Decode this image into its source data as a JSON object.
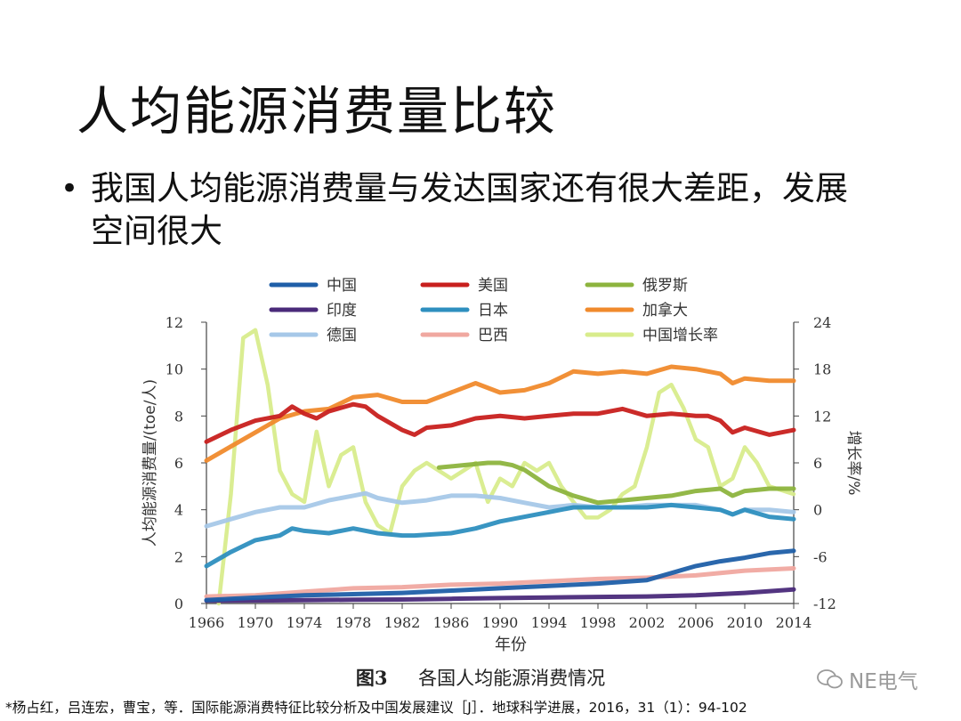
{
  "slide": {
    "title": "人均能源消费量比较",
    "bullet": "我国人均能源消费量与发达国家还有很大差距，发展空间很大"
  },
  "figure": {
    "label": "图3",
    "caption": "各国人均能源消费情况"
  },
  "reference": "*杨占红，吕连宏，曹宝，等．国际能源消费特征比较分析及中国发展建议［J］．地球科学进展，2016，31（1）：94-102",
  "watermark": "NE电气",
  "chart_data": {
    "type": "line",
    "xlabel": "年份",
    "ylabel": "人均能源消费量/(toe/人)",
    "y2label": "增长率/%",
    "ylim": [
      0,
      12
    ],
    "y2lim": [
      -12,
      24
    ],
    "xlim": [
      1966,
      2014
    ],
    "xticks": [
      1966,
      1970,
      1974,
      1978,
      1982,
      1986,
      1990,
      1994,
      1998,
      2002,
      2006,
      2010,
      2014
    ],
    "yticks": [
      0,
      2,
      4,
      6,
      8,
      10,
      12
    ],
    "y2ticks": [
      -12,
      -6,
      0,
      6,
      12,
      18,
      24
    ],
    "grid": false,
    "legend_position": "top",
    "series": [
      {
        "name": "中国",
        "color": "#1f5fa8",
        "axis": "left",
        "x": [
          1966,
          1970,
          1974,
          1978,
          1982,
          1986,
          1990,
          1994,
          1998,
          2002,
          2004,
          2006,
          2008,
          2010,
          2012,
          2014
        ],
        "y": [
          0.15,
          0.25,
          0.35,
          0.4,
          0.45,
          0.55,
          0.65,
          0.75,
          0.85,
          1.0,
          1.3,
          1.6,
          1.8,
          1.95,
          2.15,
          2.25
        ]
      },
      {
        "name": "美国",
        "color": "#c8201e",
        "axis": "left",
        "x": [
          1966,
          1968,
          1970,
          1972,
          1973,
          1974,
          1975,
          1976,
          1978,
          1979,
          1980,
          1982,
          1983,
          1984,
          1986,
          1988,
          1990,
          1992,
          1994,
          1996,
          1998,
          2000,
          2002,
          2004,
          2006,
          2007,
          2008,
          2009,
          2010,
          2012,
          2014
        ],
        "y": [
          6.9,
          7.4,
          7.8,
          8.0,
          8.4,
          8.1,
          7.9,
          8.2,
          8.5,
          8.4,
          8.0,
          7.4,
          7.2,
          7.5,
          7.6,
          7.9,
          8.0,
          7.9,
          8.0,
          8.1,
          8.1,
          8.3,
          8.0,
          8.1,
          8.0,
          8.0,
          7.8,
          7.3,
          7.5,
          7.2,
          7.4
        ]
      },
      {
        "name": "俄罗斯",
        "color": "#8db43e",
        "axis": "left",
        "x": [
          1985,
          1987,
          1989,
          1990,
          1991,
          1992,
          1994,
          1996,
          1998,
          2000,
          2002,
          2004,
          2006,
          2008,
          2009,
          2010,
          2012,
          2014
        ],
        "y": [
          5.8,
          5.9,
          6.0,
          6.0,
          5.9,
          5.7,
          5.0,
          4.6,
          4.3,
          4.4,
          4.5,
          4.6,
          4.8,
          4.9,
          4.6,
          4.8,
          4.9,
          4.9
        ]
      },
      {
        "name": "印度",
        "color": "#4a2a7a",
        "axis": "left",
        "x": [
          1966,
          1970,
          1974,
          1978,
          1982,
          1986,
          1990,
          1994,
          1998,
          2002,
          2006,
          2010,
          2014
        ],
        "y": [
          0.12,
          0.13,
          0.14,
          0.16,
          0.17,
          0.2,
          0.23,
          0.26,
          0.28,
          0.3,
          0.35,
          0.45,
          0.6
        ]
      },
      {
        "name": "日本",
        "color": "#2e8fbf",
        "axis": "left",
        "x": [
          1966,
          1968,
          1970,
          1972,
          1973,
          1974,
          1976,
          1978,
          1980,
          1982,
          1983,
          1986,
          1988,
          1990,
          1992,
          1994,
          1996,
          1998,
          2000,
          2002,
          2004,
          2006,
          2008,
          2009,
          2010,
          2012,
          2014
        ],
        "y": [
          1.6,
          2.2,
          2.7,
          2.9,
          3.2,
          3.1,
          3.0,
          3.2,
          3.0,
          2.9,
          2.9,
          3.0,
          3.2,
          3.5,
          3.7,
          3.9,
          4.1,
          4.1,
          4.1,
          4.1,
          4.2,
          4.1,
          4.0,
          3.8,
          4.0,
          3.7,
          3.6
        ]
      },
      {
        "name": "加拿大",
        "color": "#f08a2c",
        "axis": "left",
        "x": [
          1966,
          1968,
          1970,
          1972,
          1974,
          1976,
          1978,
          1980,
          1982,
          1984,
          1986,
          1988,
          1990,
          1992,
          1994,
          1996,
          1998,
          2000,
          2002,
          2004,
          2006,
          2008,
          2009,
          2010,
          2012,
          2014
        ],
        "y": [
          6.1,
          6.7,
          7.3,
          7.9,
          8.2,
          8.3,
          8.8,
          8.9,
          8.6,
          8.6,
          9.0,
          9.4,
          9.0,
          9.1,
          9.4,
          9.9,
          9.8,
          9.9,
          9.8,
          10.1,
          10.0,
          9.8,
          9.4,
          9.6,
          9.5,
          9.5
        ]
      },
      {
        "name": "德国",
        "color": "#a6c8e8",
        "axis": "left",
        "x": [
          1966,
          1968,
          1970,
          1972,
          1974,
          1976,
          1978,
          1979,
          1980,
          1982,
          1984,
          1986,
          1988,
          1990,
          1992,
          1994,
          1996,
          1998,
          2000,
          2002,
          2004,
          2006,
          2008,
          2009,
          2010,
          2012,
          2014
        ],
        "y": [
          3.3,
          3.6,
          3.9,
          4.1,
          4.1,
          4.4,
          4.6,
          4.7,
          4.5,
          4.3,
          4.4,
          4.6,
          4.6,
          4.5,
          4.3,
          4.1,
          4.2,
          4.1,
          4.1,
          4.2,
          4.2,
          4.2,
          4.0,
          3.8,
          4.0,
          4.0,
          3.9
        ]
      },
      {
        "name": "巴西",
        "color": "#f0a8a0",
        "axis": "left",
        "x": [
          1966,
          1970,
          1974,
          1978,
          1982,
          1986,
          1990,
          1994,
          1998,
          2002,
          2006,
          2010,
          2014
        ],
        "y": [
          0.3,
          0.35,
          0.5,
          0.65,
          0.7,
          0.8,
          0.85,
          0.95,
          1.05,
          1.1,
          1.2,
          1.4,
          1.5
        ]
      },
      {
        "name": "中国增长率",
        "color": "#d8ec8c",
        "axis": "right",
        "x": [
          1967,
          1968,
          1969,
          1970,
          1971,
          1972,
          1973,
          1974,
          1975,
          1976,
          1977,
          1978,
          1979,
          1980,
          1981,
          1982,
          1983,
          1984,
          1985,
          1986,
          1987,
          1988,
          1989,
          1990,
          1991,
          1992,
          1993,
          1994,
          1995,
          1996,
          1997,
          1998,
          1999,
          2000,
          2001,
          2002,
          2003,
          2004,
          2005,
          2006,
          2007,
          2008,
          2009,
          2010,
          2011,
          2012,
          2013,
          2014
        ],
        "y": [
          -12,
          2,
          22,
          23,
          16,
          5,
          2,
          1,
          10,
          3,
          7,
          8,
          1,
          -2,
          -3,
          3,
          5,
          6,
          5,
          4,
          5,
          6,
          1,
          4,
          3,
          6,
          5,
          6,
          3,
          1,
          -1,
          -1,
          0,
          2,
          3,
          8,
          15,
          16,
          13,
          9,
          8,
          3,
          4,
          8,
          6,
          3,
          2.5,
          2
        ]
      }
    ]
  }
}
